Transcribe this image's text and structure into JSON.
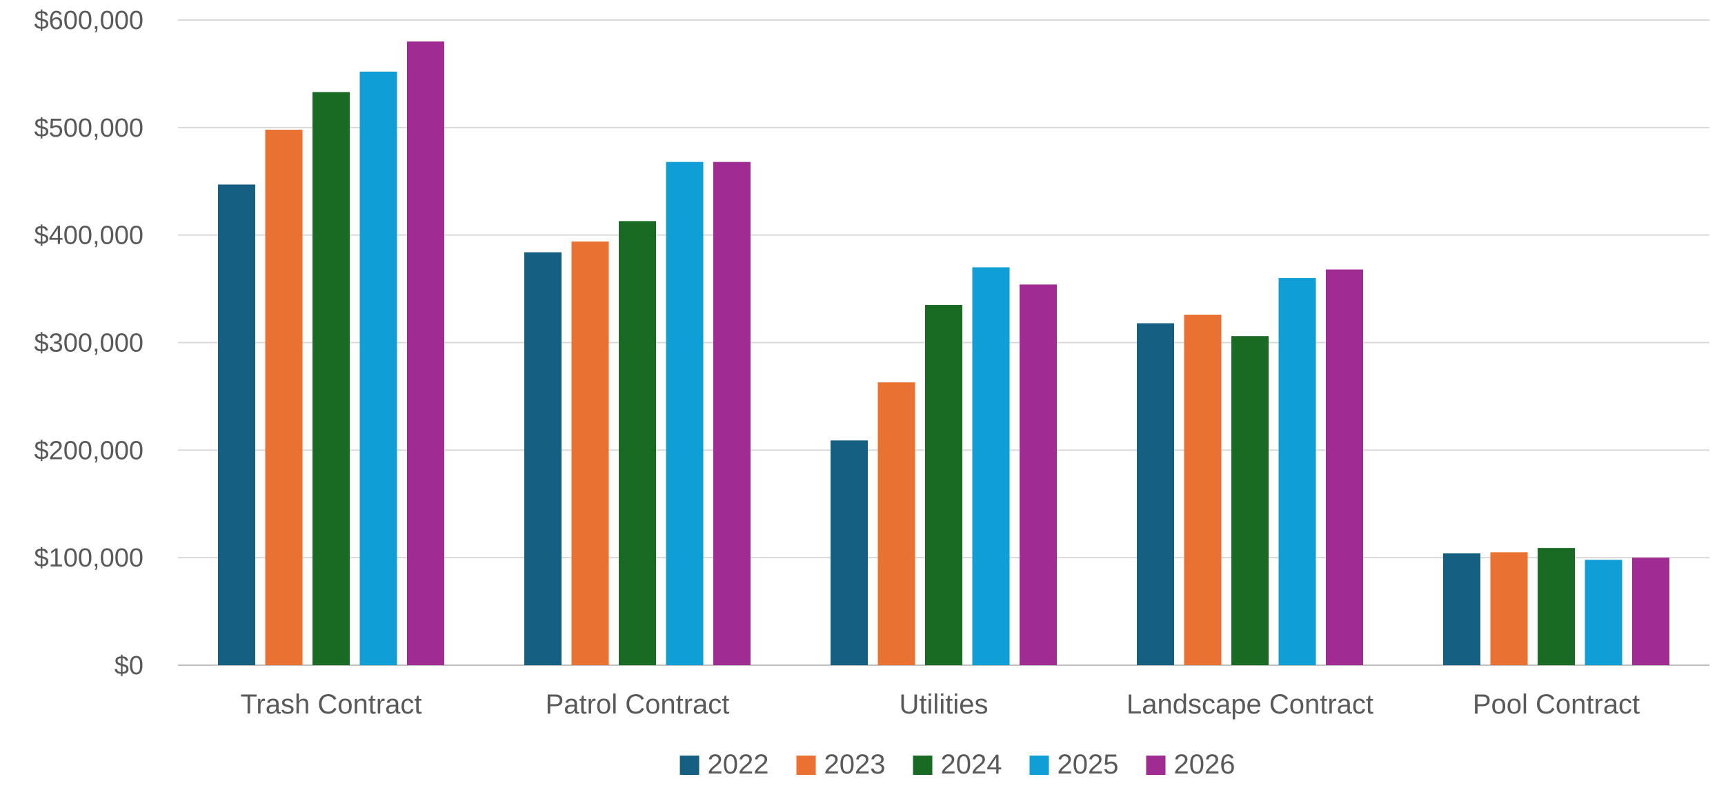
{
  "chart_data": {
    "type": "bar",
    "title": "",
    "xlabel": "",
    "ylabel": "",
    "categories": [
      "Trash Contract",
      "Patrol Contract",
      "Utilities",
      "Landscape Contract",
      "Pool Contract"
    ],
    "series": [
      {
        "name": "2022",
        "color": "#156082",
        "values": [
          447000,
          384000,
          209000,
          318000,
          104000
        ]
      },
      {
        "name": "2023",
        "color": "#E97132",
        "values": [
          498000,
          394000,
          263000,
          326000,
          105000
        ]
      },
      {
        "name": "2024",
        "color": "#196B24",
        "values": [
          533000,
          413000,
          335000,
          306000,
          109000
        ]
      },
      {
        "name": "2025",
        "color": "#0F9ED5",
        "values": [
          552000,
          468000,
          370000,
          360000,
          98000
        ]
      },
      {
        "name": "2026",
        "color": "#A02B93",
        "values": [
          580000,
          468000,
          354000,
          368000,
          100000
        ]
      }
    ],
    "y_ticks": [
      0,
      100000,
      200000,
      300000,
      400000,
      500000,
      600000
    ],
    "y_tick_labels": [
      "$0",
      "$100,000",
      "$200,000",
      "$300,000",
      "$400,000",
      "$500,000",
      "$600,000"
    ],
    "ylim": [
      0,
      600000
    ],
    "grid": true,
    "legend": "bottom-center"
  }
}
